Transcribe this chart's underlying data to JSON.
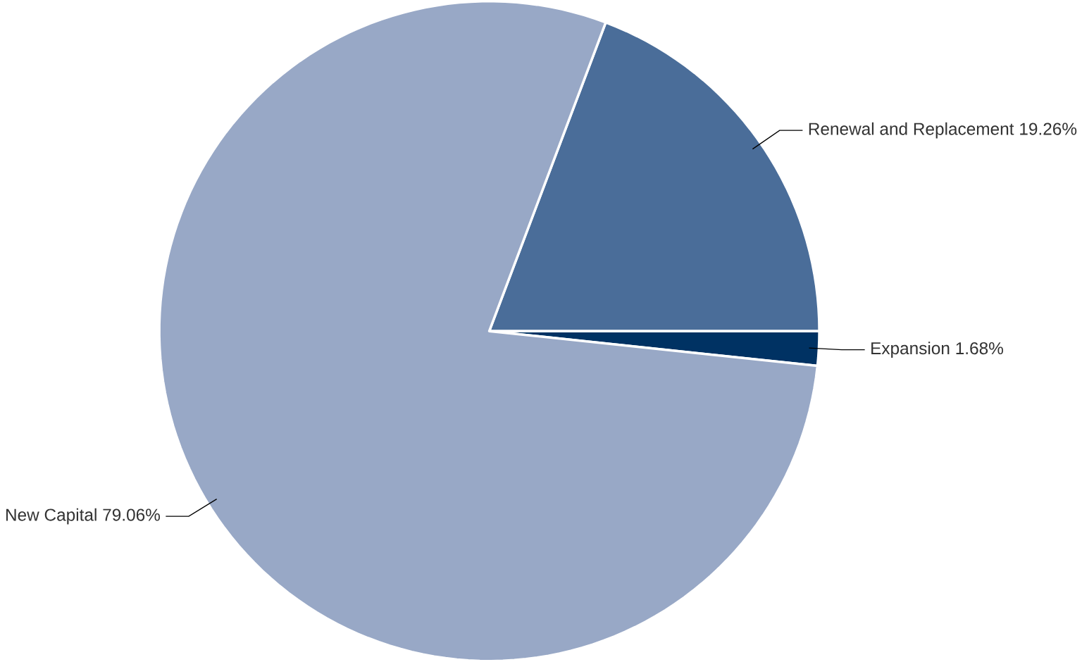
{
  "chart_data": {
    "type": "pie",
    "categories": [
      "Renewal and Replacement",
      "Expansion",
      "New Capital"
    ],
    "values": [
      19.26,
      1.68,
      79.06
    ],
    "colors": [
      "#4a6d99",
      "#003263",
      "#98a8c6"
    ],
    "value_labels": [
      "19.26%",
      "1.68%",
      "79.06%"
    ]
  }
}
